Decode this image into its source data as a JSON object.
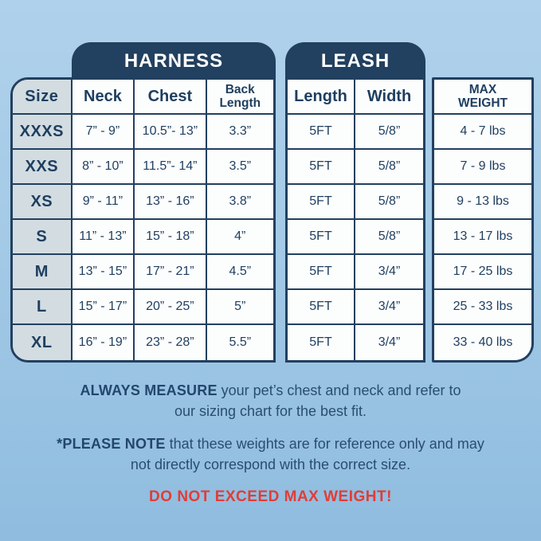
{
  "page": {
    "background_top_color": "#b0d1eb",
    "background_bottom_color": "#8fbcdf",
    "navy_color": "#22405f",
    "size_column_color": "#d2dce1",
    "warning_color": "#e23c37"
  },
  "sections": {
    "harness_title": "HARNESS",
    "leash_title": "LEASH"
  },
  "headers": {
    "size": "Size",
    "neck": "Neck",
    "chest": "Chest",
    "back_length": "Back Length",
    "length": "Length",
    "width": "Width",
    "max_weight": "MAX WEIGHT"
  },
  "rows": [
    {
      "size": "XXXS",
      "neck": "7” - 9”",
      "chest": "10.5”- 13”",
      "back_length": "3.3”",
      "length": "5FT",
      "width": "5/8”",
      "max_weight": "4 - 7 lbs"
    },
    {
      "size": "XXS",
      "neck": "8” - 10”",
      "chest": "11.5”- 14”",
      "back_length": "3.5”",
      "length": "5FT",
      "width": "5/8”",
      "max_weight": "7 - 9 lbs"
    },
    {
      "size": "XS",
      "neck": "9” - 11”",
      "chest": "13” - 16”",
      "back_length": "3.8”",
      "length": "5FT",
      "width": "5/8”",
      "max_weight": "9 - 13 lbs"
    },
    {
      "size": "S",
      "neck": "11” - 13”",
      "chest": "15” - 18”",
      "back_length": "4”",
      "length": "5FT",
      "width": "5/8”",
      "max_weight": "13 - 17 lbs"
    },
    {
      "size": "M",
      "neck": "13” - 15”",
      "chest": "17” - 21”",
      "back_length": "4.5”",
      "length": "5FT",
      "width": "3/4”",
      "max_weight": "17 - 25 lbs"
    },
    {
      "size": "L",
      "neck": "15” - 17”",
      "chest": "20” - 25”",
      "back_length": "5”",
      "length": "5FT",
      "width": "3/4”",
      "max_weight": "25 - 33 lbs"
    },
    {
      "size": "XL",
      "neck": "16” - 19”",
      "chest": "23” - 28”",
      "back_length": "5.5”",
      "length": "5FT",
      "width": "3/4”",
      "max_weight": "33 - 40 lbs"
    }
  ],
  "footer": {
    "measure_bold": "ALWAYS MEASURE",
    "measure_rest": " your pet’s chest and neck and refer to our sizing chart for the best fit.",
    "note_bold": "*PLEASE NOTE",
    "note_rest": " that these weights are for reference only and may not directly correspond with the correct size.",
    "warning": "DO NOT EXCEED MAX WEIGHT!"
  }
}
